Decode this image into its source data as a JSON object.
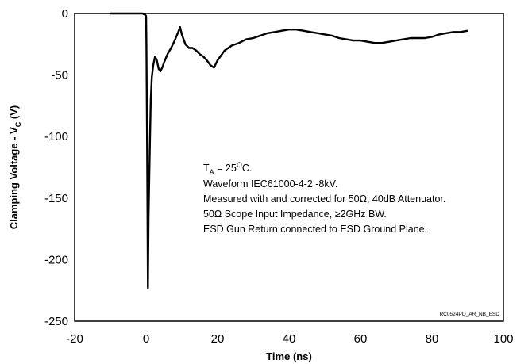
{
  "chart_data": {
    "type": "line",
    "title": "",
    "xlabel": "Time (ns)",
    "ylabel_main": "Clamping Voltage  - V",
    "ylabel_sub": "C",
    "ylabel_unit": " (V)",
    "xlim": [
      -20,
      100
    ],
    "ylim": [
      -250,
      0
    ],
    "xticks": [
      -20,
      0,
      20,
      40,
      60,
      80,
      100
    ],
    "yticks": [
      0,
      -50,
      -100,
      -150,
      -200,
      -250
    ],
    "grid": false,
    "legend": "none",
    "line_color": "#000000",
    "series": [
      {
        "x": [
          -10,
          -8,
          -6,
          -4,
          -2,
          -1,
          -0.3,
          0,
          0.1,
          0.3,
          0.5,
          0.7,
          1.0,
          1.3,
          1.6,
          2.0,
          2.5,
          3.0,
          3.5,
          4.0,
          4.5,
          5.0,
          6.0,
          7.0,
          8.0,
          9.0,
          9.5,
          10.0,
          11.0,
          12.0,
          13.0,
          14.0,
          15.0,
          16.0,
          17.0,
          18.0,
          19.0,
          20.0,
          22.0,
          24.0,
          26.0,
          28.0,
          30.0,
          32.0,
          34.0,
          36.0,
          38.0,
          40.0,
          42.0,
          44.0,
          46.0,
          48.0,
          50.0,
          52.0,
          54.0,
          56.0,
          58.0,
          60.0,
          62.0,
          64.0,
          66.0,
          68.0,
          70.0,
          72.0,
          74.0,
          76.0,
          78.0,
          80.0,
          82.0,
          84.0,
          86.0,
          88.0,
          90.0
        ],
        "y": [
          0,
          0,
          0,
          0,
          0,
          0,
          -1,
          -2,
          -25,
          -110,
          -223,
          -165,
          -115,
          -70,
          -52,
          -42,
          -35,
          -38,
          -45,
          -47,
          -44,
          -40,
          -33,
          -28,
          -22,
          -15,
          -11,
          -17,
          -25,
          -28,
          -28,
          -30,
          -33,
          -35,
          -38,
          -42,
          -44,
          -38,
          -30,
          -26,
          -24,
          -21,
          -20,
          -18,
          -16,
          -15,
          -14,
          -13,
          -13,
          -14,
          -15,
          -16,
          -17,
          -18,
          -20,
          -21,
          -22,
          -22,
          -23,
          -24,
          -24,
          -23,
          -22,
          -21,
          -20,
          -20,
          -20,
          -19,
          -17,
          -16,
          -15,
          -15,
          -14
        ]
      }
    ],
    "annotations": {
      "line1_pre": "T",
      "line1_sub": "A",
      "line1_mid": " = 25",
      "line1_sup": "O",
      "line1_post": "C.",
      "line2": "Waveform IEC61000-4-2 -8kV.",
      "line3": "Measured with and corrected for 50Ω, 40dB Attenuator.",
      "line4": "50Ω Scope Input Impedance, ≥2GHz BW.",
      "line5": "ESD Gun Return connected to ESD Ground Plane."
    },
    "figure_code": "RC0524PQ_AR_NB_ESD"
  }
}
